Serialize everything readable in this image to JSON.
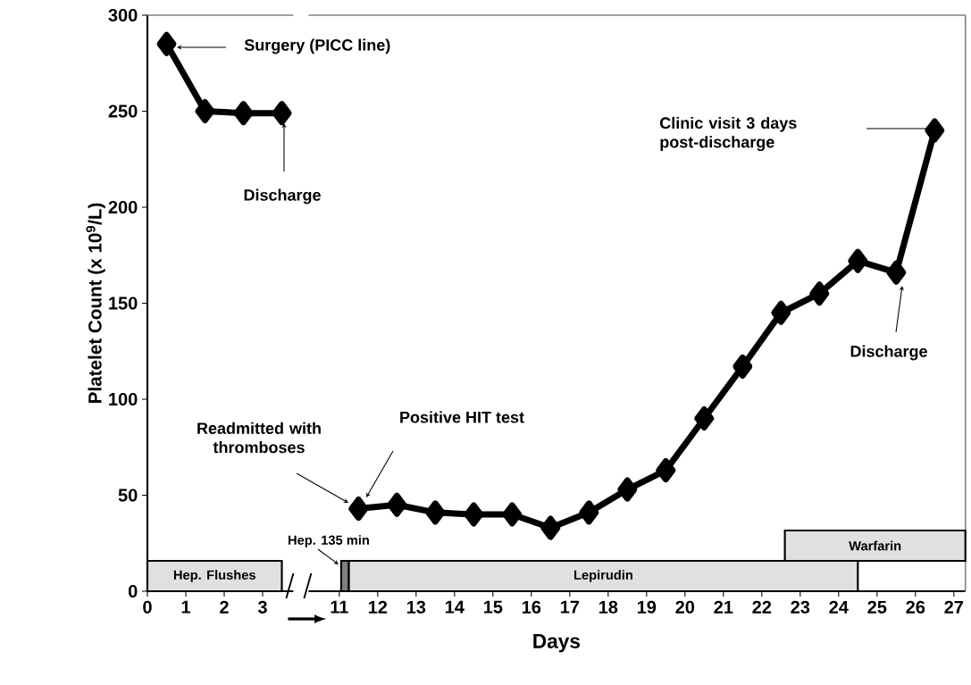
{
  "chart_data": [
    {
      "type": "line",
      "ylabel": "Platelet Count (x 10$^{9}$/L)",
      "x": [
        0.5,
        1.5,
        2.5,
        3.5
      ],
      "series": [
        {
          "color": "#000000",
          "values": [
            285,
            250,
            249,
            249
          ]
        }
      ],
      "xlim": [
        0,
        3.8
      ],
      "ylim": [
        0,
        300
      ],
      "xticks": [
        0,
        1,
        2,
        3
      ],
      "yticks": [
        0,
        50,
        100,
        150,
        200,
        250,
        300
      ],
      "marker": "diamond",
      "tick_labels": "xy",
      "bands": [
        {
          "axis": "x",
          "from": 0,
          "to": 3.5,
          "label": "Hep. Flushes",
          "color": "#e0e0e0"
        }
      ],
      "annotations": [
        "Surgery (PICC line)",
        "Discharge"
      ]
    },
    {
      "type": "line",
      "xlabel": "Days",
      "x": [
        11.5,
        12.5,
        13.5,
        14.5,
        15.5,
        16.5,
        17.5,
        18.5,
        19.5,
        20.5,
        21.5,
        22.5,
        23.5,
        24.5,
        25.5,
        26.5
      ],
      "series": [
        {
          "color": "#000000",
          "values": [
            43,
            45,
            41,
            40,
            40,
            33,
            41,
            53,
            63,
            90,
            117,
            145,
            155,
            172,
            166,
            240
          ]
        }
      ],
      "xlim": [
        10.2,
        27.3
      ],
      "ylim": [
        0,
        300
      ],
      "xticks": [
        11,
        12,
        13,
        14,
        15,
        16,
        17,
        18,
        19,
        20,
        21,
        22,
        23,
        24,
        25,
        26,
        27
      ],
      "yticks": [
        0,
        50,
        100,
        150,
        200,
        250,
        300
      ],
      "marker": "diamond",
      "tick_labels": "x",
      "bands": [
        {
          "axis": "x",
          "from": 11.05,
          "to": 11.25,
          "label": "Hep. 135 min",
          "color": "#808080"
        },
        {
          "axis": "x",
          "from": 11.25,
          "to": 24.5,
          "label": "Lepirudin",
          "color": "#e0e0e0"
        },
        {
          "axis": "x",
          "from": 22.6,
          "to": 27.3,
          "label": "Warfarin",
          "color": "#e0e0e0"
        }
      ],
      "annotations": [
        "Readmitted with thromboses",
        "Positive HIT test",
        "Clinic visit 3 days post-discharge",
        "Discharge"
      ]
    }
  ]
}
